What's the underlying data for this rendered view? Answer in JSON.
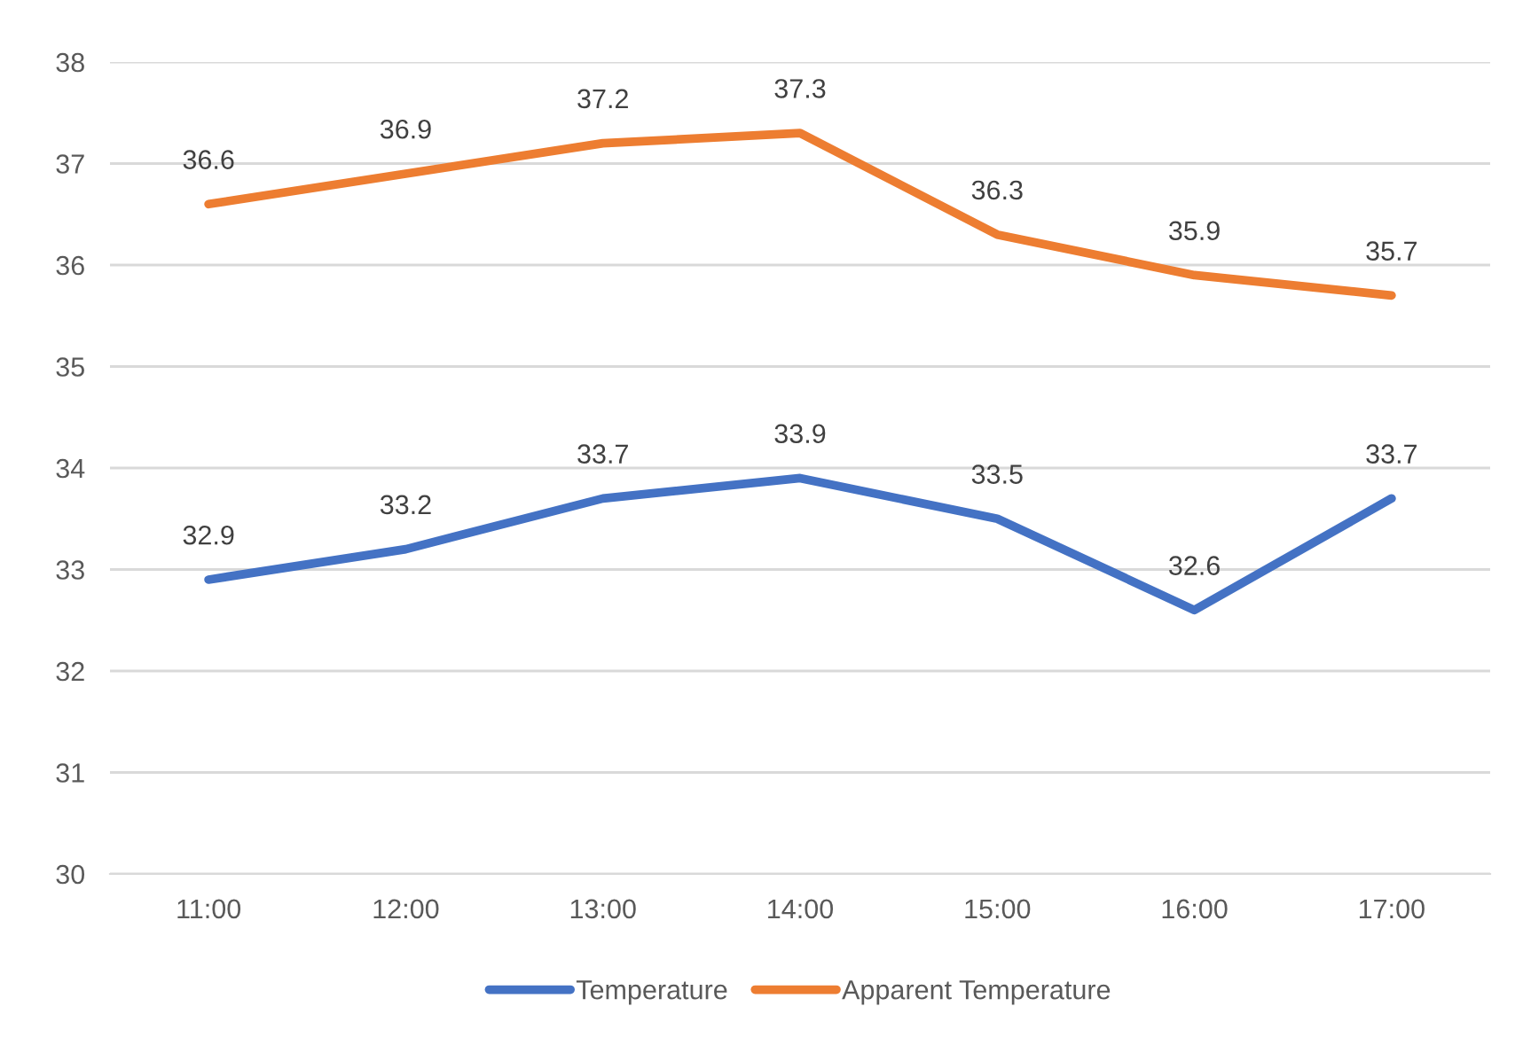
{
  "chart_data": {
    "type": "line",
    "categories": [
      "11:00",
      "12:00",
      "13:00",
      "14:00",
      "15:00",
      "16:00",
      "17:00"
    ],
    "series": [
      {
        "name": "Temperature",
        "color": "#4472c4",
        "values": [
          32.9,
          33.2,
          33.7,
          33.9,
          33.5,
          32.6,
          33.7
        ]
      },
      {
        "name": "Apparent Temperature",
        "color": "#ed7d31",
        "values": [
          36.6,
          36.9,
          37.2,
          37.3,
          36.3,
          35.9,
          35.7
        ]
      }
    ],
    "ylim": [
      30,
      38
    ],
    "yticks": [
      30,
      31,
      32,
      33,
      34,
      35,
      36,
      37,
      38
    ],
    "grid": "y",
    "legend": "bottom",
    "data_labels": true,
    "marker": "none",
    "line_style": "solid"
  }
}
